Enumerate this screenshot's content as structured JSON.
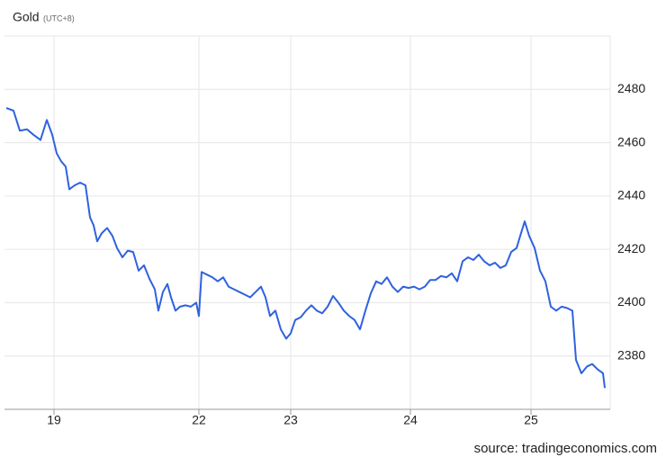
{
  "chart_data": {
    "type": "line",
    "title": "Gold",
    "subtitle": "(UTC+8)",
    "source": "source: tradingeconomics.com",
    "x": [
      2,
      10,
      17,
      25,
      32,
      40,
      47,
      53,
      58,
      63,
      68,
      72,
      78,
      84,
      90,
      95,
      99,
      103,
      108,
      114,
      120,
      125,
      131,
      137,
      143,
      149,
      155,
      161,
      167,
      171,
      176,
      181,
      185,
      190,
      195,
      201,
      207,
      213,
      216,
      219,
      225,
      231,
      237,
      243,
      249,
      255,
      261,
      267,
      273,
      279,
      285,
      290,
      295,
      301,
      307,
      313,
      318,
      323,
      329,
      335,
      341,
      347,
      353,
      359,
      365,
      371,
      377,
      383,
      389,
      395,
      401,
      407,
      413,
      419,
      425,
      431,
      437,
      443,
      449,
      455,
      461,
      467,
      473,
      479,
      485,
      491,
      497,
      503,
      509,
      515,
      521,
      527,
      533,
      539,
      545,
      551,
      557,
      563,
      569,
      573,
      578,
      583,
      589,
      595,
      601,
      607,
      613,
      619,
      625,
      631,
      635,
      641,
      647,
      653,
      659,
      665,
      667
    ],
    "series": [
      {
        "name": "Gold",
        "color": "#2f62de",
        "values": [
          2473,
          2472,
          2464.5,
          2465,
          2463,
          2461,
          2468.5,
          2463,
          2456,
          2453,
          2451,
          2442.5,
          2444,
          2445,
          2444,
          2432,
          2429,
          2423,
          2426,
          2428,
          2425,
          2420.5,
          2417,
          2419.5,
          2419,
          2412,
          2414,
          2409,
          2405,
          2397,
          2404,
          2407,
          2402,
          2397,
          2398.5,
          2399,
          2398.5,
          2400,
          2395,
          2411.5,
          2410.5,
          2409.5,
          2408,
          2409.5,
          2406,
          2405,
          2404,
          2403,
          2402,
          2404,
          2406,
          2402,
          2395,
          2397,
          2390,
          2386.5,
          2388.5,
          2393.5,
          2394.5,
          2397,
          2399,
          2397,
          2396,
          2398.5,
          2402.5,
          2400,
          2397,
          2395,
          2393.5,
          2390,
          2397,
          2403.5,
          2408,
          2407,
          2409.5,
          2406,
          2404,
          2406,
          2405.5,
          2406,
          2405,
          2406,
          2408.5,
          2408.5,
          2410,
          2409.5,
          2411,
          2408,
          2415.5,
          2417,
          2416,
          2418,
          2415.5,
          2414,
          2415,
          2413,
          2414,
          2419,
          2420.5,
          2425,
          2430.5,
          2425,
          2420.5,
          2412,
          2408,
          2398.5,
          2397,
          2398.5,
          2398,
          2397,
          2378.5,
          2373.5,
          2376,
          2377,
          2375,
          2373.5,
          2368
        ]
      }
    ],
    "xlim": [
      0,
      673
    ],
    "xticks": [
      {
        "value": 55,
        "label": "19"
      },
      {
        "value": 216,
        "label": "22"
      },
      {
        "value": 318,
        "label": "23"
      },
      {
        "value": 451,
        "label": "24"
      },
      {
        "value": 585,
        "label": "25"
      }
    ],
    "ylim": [
      2360,
      2500
    ],
    "yticks": [
      2380,
      2400,
      2420,
      2440,
      2460,
      2480
    ],
    "grid": true
  }
}
